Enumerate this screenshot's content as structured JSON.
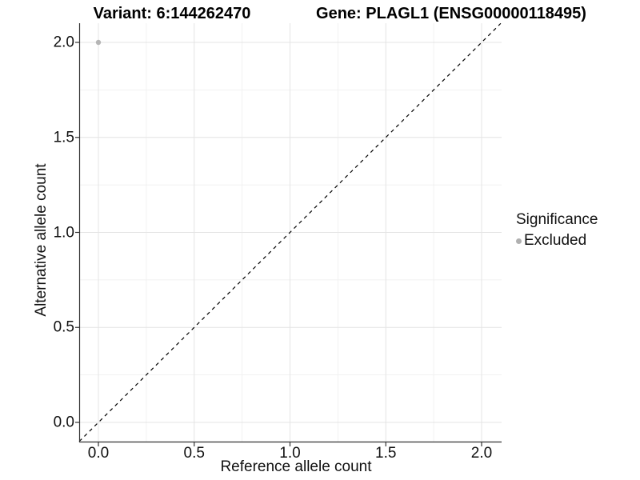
{
  "chart_data": {
    "type": "scatter",
    "titles": {
      "variant": "Variant: 6:144262470",
      "gene": "Gene: PLAGL1 (ENSG00000118495)"
    },
    "xlabel": "Reference allele count",
    "ylabel": "Alternative allele count",
    "xlim": [
      -0.1,
      2.1
    ],
    "ylim": [
      -0.1,
      2.1
    ],
    "x_ticks": {
      "values": [
        0,
        0.5,
        1,
        1.5,
        2
      ],
      "labels": [
        "0.0",
        "0.5",
        "1.0",
        "1.5",
        "2.0"
      ]
    },
    "y_ticks": {
      "values": [
        0,
        0.5,
        1,
        1.5,
        2
      ],
      "labels": [
        "0.0",
        "0.5",
        "1.0",
        "1.5",
        "2.0"
      ]
    },
    "grid": "on",
    "minor_grid_step": 0.25,
    "series": [
      {
        "name": "Excluded",
        "color": "#b5b5b5",
        "points": [
          [
            0,
            2
          ]
        ]
      }
    ],
    "reference_line": {
      "kind": "identity y=x",
      "style": "dashed",
      "color": "#000000",
      "from": [
        -0.1,
        -0.1
      ],
      "to": [
        2.1,
        2.1
      ]
    },
    "legend": {
      "title": "Significance",
      "position": "right",
      "items": [
        {
          "label": "Excluded",
          "color": "#b0b0b0"
        }
      ]
    },
    "colors": {
      "panel_background": "#ffffff",
      "grid_major": "#e4e4e4",
      "grid_minor": "#f1f1f1",
      "axis_line": "#333333",
      "text": "#111111"
    }
  }
}
